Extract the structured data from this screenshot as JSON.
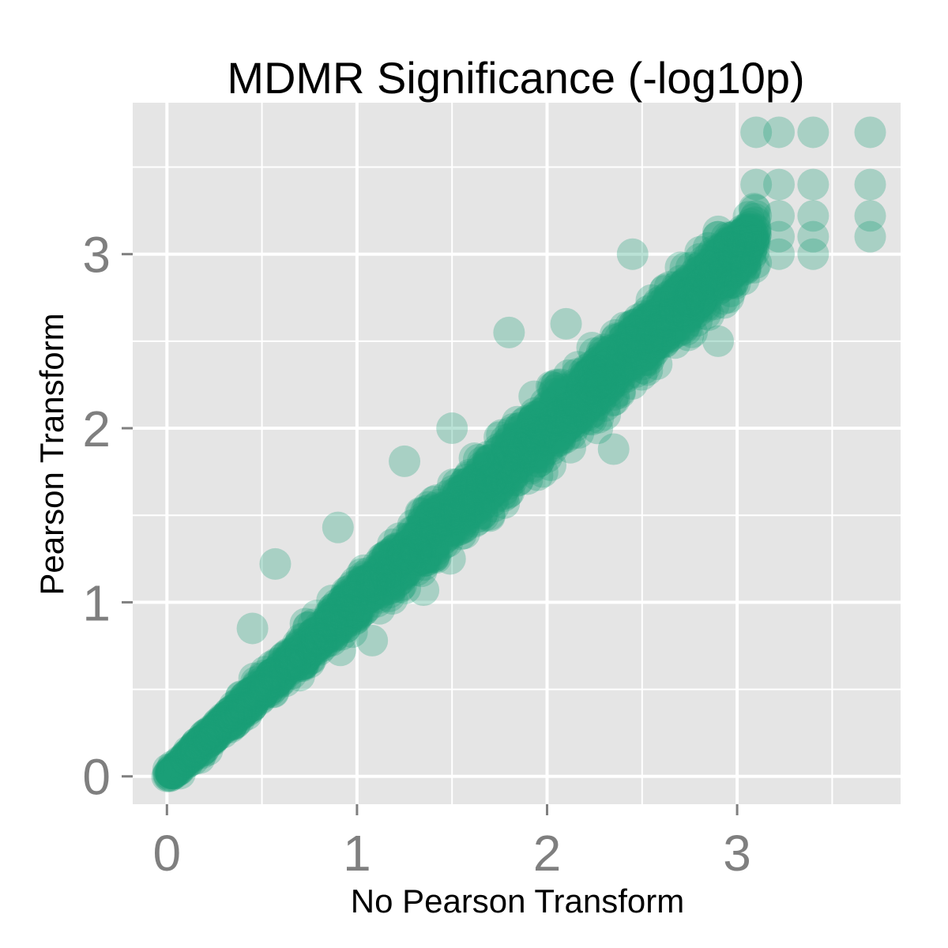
{
  "chart_data": {
    "type": "scatter",
    "title": "MDMR Significance (-log10p)",
    "xlabel": "No Pearson Transform",
    "ylabel": "Pearson Transform",
    "xlim": [
      -0.18,
      3.86
    ],
    "ylim": [
      -0.16,
      3.87
    ],
    "x_ticks": [
      0,
      1,
      2,
      3
    ],
    "x_tick_labels": [
      "0",
      "1",
      "2",
      "3"
    ],
    "y_ticks": [
      0,
      1,
      2,
      3
    ],
    "y_tick_labels": [
      "0",
      "1",
      "2",
      "3"
    ],
    "grid": true,
    "panel_background": "#e5e5e5",
    "grid_color": "#ffffff",
    "point_color": "#1b9e77",
    "point_alpha": 0.3,
    "trend": {
      "description": "dense band of points along the identity line y = x",
      "x_range": [
        0.0,
        3.1
      ],
      "spread": 0.08
    },
    "points": [
      {
        "x": 0.0,
        "y": 0.0
      },
      {
        "x": 0.05,
        "y": 0.03
      },
      {
        "x": 0.1,
        "y": 0.12
      },
      {
        "x": 0.2,
        "y": 0.24
      },
      {
        "x": 0.45,
        "y": 0.85
      },
      {
        "x": 0.57,
        "y": 1.22
      },
      {
        "x": 0.9,
        "y": 1.43
      },
      {
        "x": 1.08,
        "y": 0.78
      },
      {
        "x": 1.25,
        "y": 1.81
      },
      {
        "x": 1.35,
        "y": 1.07
      },
      {
        "x": 1.5,
        "y": 2.0
      },
      {
        "x": 1.8,
        "y": 2.55
      },
      {
        "x": 1.95,
        "y": 1.73
      },
      {
        "x": 2.1,
        "y": 2.6
      },
      {
        "x": 2.35,
        "y": 1.88
      },
      {
        "x": 2.45,
        "y": 3.0
      },
      {
        "x": 2.9,
        "y": 2.5
      },
      {
        "x": 3.0,
        "y": 3.1
      },
      {
        "x": 2.9,
        "y": 3.1
      },
      {
        "x": 2.85,
        "y": 2.65
      },
      {
        "x": 3.1,
        "y": 3.7
      },
      {
        "x": 3.22,
        "y": 3.7
      },
      {
        "x": 3.4,
        "y": 3.7
      },
      {
        "x": 3.7,
        "y": 3.7
      },
      {
        "x": 3.1,
        "y": 3.4
      },
      {
        "x": 3.22,
        "y": 3.4
      },
      {
        "x": 3.4,
        "y": 3.4
      },
      {
        "x": 3.7,
        "y": 3.4
      },
      {
        "x": 3.1,
        "y": 3.22
      },
      {
        "x": 3.22,
        "y": 3.22
      },
      {
        "x": 3.4,
        "y": 3.22
      },
      {
        "x": 3.7,
        "y": 3.22
      },
      {
        "x": 3.22,
        "y": 3.1
      },
      {
        "x": 3.4,
        "y": 3.1
      },
      {
        "x": 3.7,
        "y": 3.1
      },
      {
        "x": 3.22,
        "y": 3.0
      },
      {
        "x": 3.4,
        "y": 3.0
      },
      {
        "x": 3.1,
        "y": 2.95
      }
    ]
  }
}
